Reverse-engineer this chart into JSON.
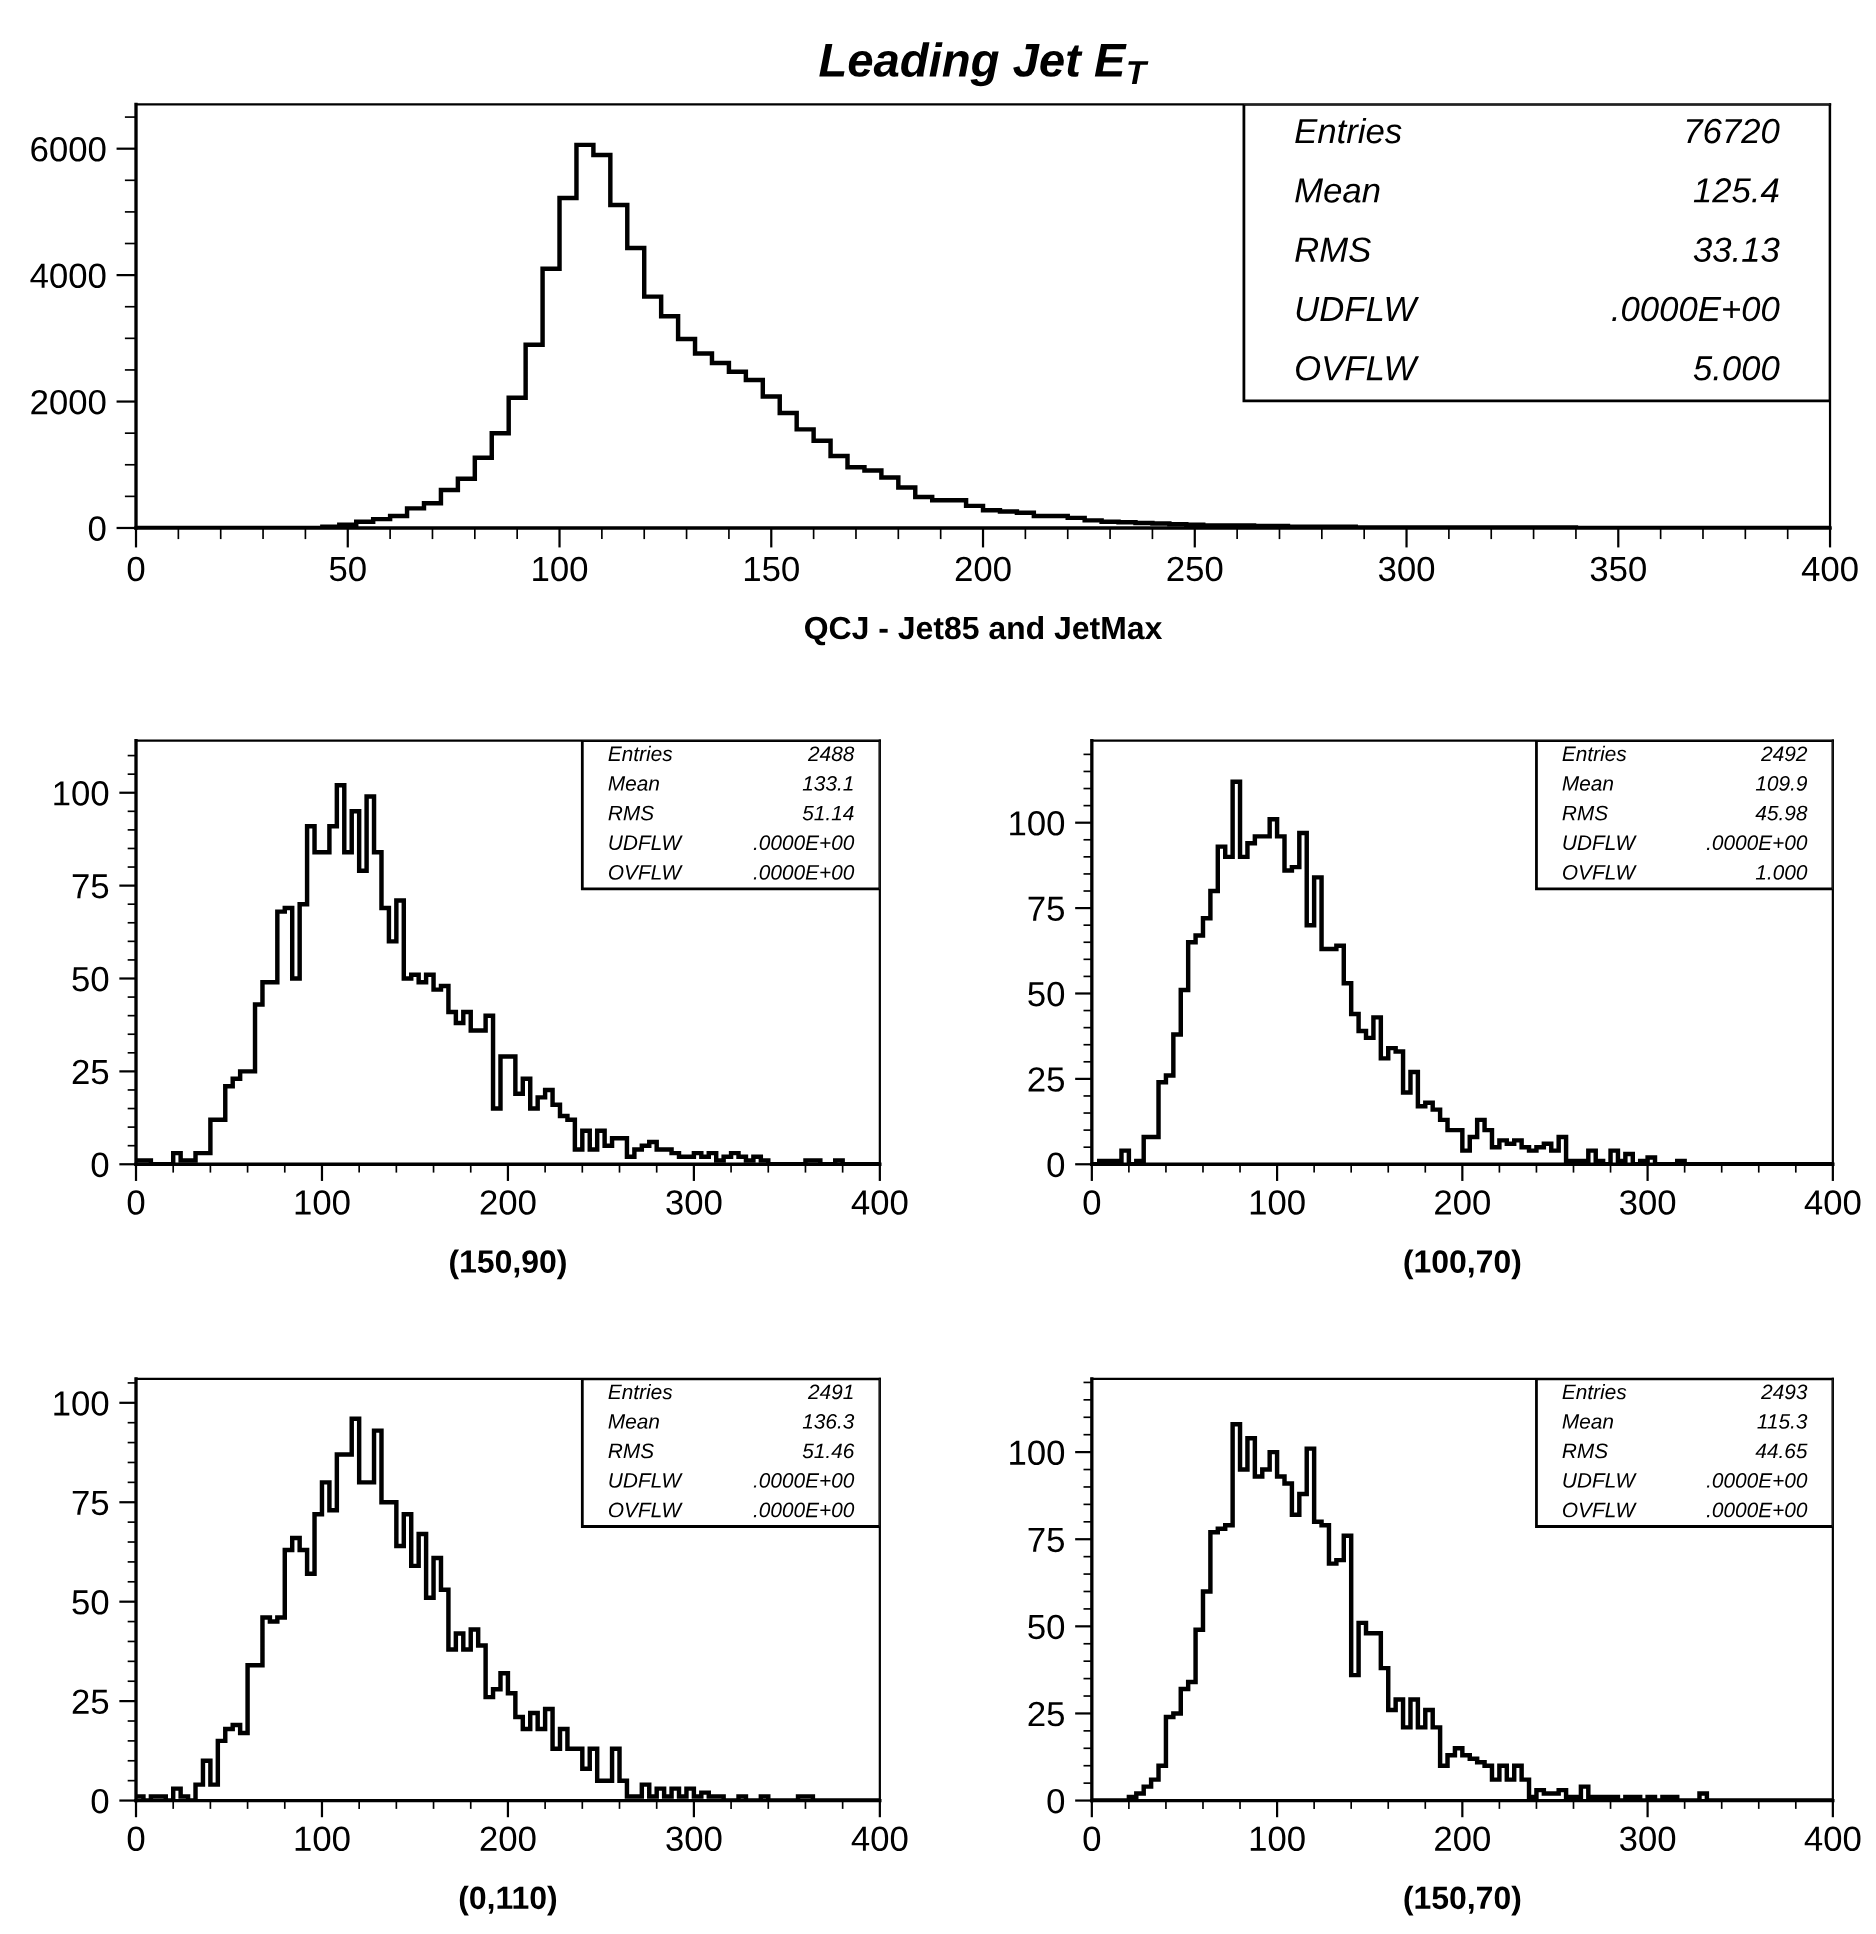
{
  "chart_data": [
    {
      "type": "histogram",
      "title": "Leading Jet E$_{T}$",
      "xlabel": "QCJ - Jet85 and JetMax",
      "color": "#000000",
      "bins": [
        0,
        4,
        8,
        12,
        16,
        20,
        24,
        28,
        32,
        36,
        40,
        44,
        48,
        52,
        56,
        60,
        64,
        68,
        72,
        76,
        80,
        84,
        88,
        92,
        96,
        100,
        104,
        108,
        112,
        116,
        120,
        124,
        128,
        132,
        136,
        140,
        144,
        148,
        152,
        156,
        160,
        164,
        168,
        172,
        176,
        180,
        184,
        188,
        192,
        196,
        200,
        204,
        208,
        212,
        216,
        220,
        224,
        228,
        232,
        236,
        240,
        244,
        248,
        252,
        256,
        260,
        264,
        268,
        272,
        276,
        280,
        284,
        288,
        292,
        296,
        300,
        304,
        308,
        312,
        316,
        320,
        324,
        328,
        332,
        336,
        340,
        344,
        348,
        352,
        356,
        360,
        364,
        368,
        372,
        376,
        380,
        384,
        388,
        392,
        396,
        400
      ],
      "values": [
        0,
        0,
        0,
        0,
        0,
        0,
        0,
        0,
        0,
        0,
        0,
        20,
        50,
        100,
        140,
        190,
        310,
        390,
        600,
        780,
        1110,
        1500,
        2060,
        2900,
        4100,
        5220,
        6060,
        5900,
        5110,
        4430,
        3660,
        3350,
        2990,
        2760,
        2610,
        2470,
        2340,
        2080,
        1820,
        1560,
        1380,
        1140,
        960,
        910,
        800,
        640,
        490,
        440,
        440,
        350,
        280,
        260,
        240,
        190,
        190,
        160,
        120,
        100,
        90,
        80,
        70,
        60,
        50,
        40,
        40,
        40,
        30,
        30,
        20,
        20,
        20,
        20,
        10,
        10,
        10,
        10,
        10,
        10,
        10,
        10,
        10,
        10,
        10,
        10,
        10,
        0,
        0,
        0,
        0,
        0,
        0,
        0,
        0,
        0,
        0,
        0,
        0,
        0,
        0,
        0
      ],
      "xlim": [
        0,
        400
      ],
      "ylim": [
        0,
        6700
      ],
      "xticks": [
        0,
        {
          "value": 10,
          "label": null
        },
        {
          "value": 20,
          "label": null
        },
        {
          "value": 30,
          "label": null
        },
        {
          "value": 40,
          "label": null
        },
        50,
        {
          "value": 60,
          "label": null
        },
        {
          "value": 70,
          "label": null
        },
        {
          "value": 80,
          "label": null
        },
        {
          "value": 90,
          "label": null
        },
        100,
        {
          "value": 110,
          "label": null
        },
        {
          "value": 120,
          "label": null
        },
        {
          "value": 130,
          "label": null
        },
        {
          "value": 140,
          "label": null
        },
        150,
        {
          "value": 160,
          "label": null
        },
        {
          "value": 170,
          "label": null
        },
        {
          "value": 180,
          "label": null
        },
        {
          "value": 190,
          "label": null
        },
        200,
        {
          "value": 210,
          "label": null
        },
        {
          "value": 220,
          "label": null
        },
        {
          "value": 230,
          "label": null
        },
        {
          "value": 240,
          "label": null
        },
        250,
        {
          "value": 260,
          "label": null
        },
        {
          "value": 270,
          "label": null
        },
        {
          "value": 280,
          "label": null
        },
        {
          "value": 290,
          "label": null
        },
        300,
        {
          "value": 310,
          "label": null
        },
        {
          "value": 320,
          "label": null
        },
        {
          "value": 330,
          "label": null
        },
        {
          "value": 340,
          "label": null
        },
        350,
        {
          "value": 360,
          "label": null
        },
        {
          "value": 370,
          "label": null
        },
        {
          "value": 380,
          "label": null
        },
        {
          "value": 390,
          "label": null
        },
        400
      ],
      "yticks": [
        0,
        {
          "value": 500,
          "label": null
        },
        {
          "value": 1000,
          "label": null
        },
        {
          "value": 1500,
          "label": null
        },
        2000,
        {
          "value": 2500,
          "label": null
        },
        {
          "value": 3000,
          "label": null
        },
        {
          "value": 3500,
          "label": null
        },
        4000,
        {
          "value": 4500,
          "label": null
        },
        {
          "value": 5000,
          "label": null
        },
        {
          "value": 5500,
          "label": null
        },
        6000,
        {
          "value": 6500,
          "label": null
        }
      ],
      "annotations": [
        "Entries",
        "76720",
        "Mean",
        "125.4",
        "RMS",
        "33.13",
        "UDFLW",
        ".0000E+00",
        "OVFLW",
        "5.000"
      ]
    },
    {
      "type": "histogram",
      "xlabel": "(150,90)",
      "color": "#000000",
      "bins": [
        0,
        4,
        8,
        12,
        16,
        20,
        24,
        28,
        32,
        36,
        40,
        44,
        48,
        52,
        56,
        60,
        64,
        68,
        72,
        76,
        80,
        84,
        88,
        92,
        96,
        100,
        104,
        108,
        112,
        116,
        120,
        124,
        128,
        132,
        136,
        140,
        144,
        148,
        152,
        156,
        160,
        164,
        168,
        172,
        176,
        180,
        184,
        188,
        192,
        196,
        200,
        204,
        208,
        212,
        216,
        220,
        224,
        228,
        232,
        236,
        240,
        244,
        248,
        252,
        256,
        260,
        264,
        268,
        272,
        276,
        280,
        284,
        288,
        292,
        296,
        300,
        304,
        308,
        312,
        316,
        320,
        324,
        328,
        332,
        336,
        340,
        344,
        348,
        352,
        356,
        360,
        364,
        368,
        372,
        376,
        380,
        384,
        388,
        392,
        396,
        400
      ],
      "values": [
        1,
        1,
        0,
        0,
        0,
        3,
        1,
        1,
        3,
        3,
        12,
        12,
        21,
        23,
        25,
        25,
        43,
        49,
        49,
        68,
        69,
        50,
        70,
        91,
        84,
        84,
        91,
        102,
        84,
        95,
        79,
        99,
        84,
        69,
        60,
        71,
        50,
        51,
        49,
        51,
        47,
        48,
        41,
        38,
        41,
        36,
        36,
        40,
        15,
        29,
        29,
        19,
        23,
        15,
        18,
        20,
        16,
        13,
        12,
        4,
        9,
        4,
        9,
        5,
        7,
        7,
        2,
        4,
        5,
        6,
        4,
        4,
        3,
        2,
        2,
        3,
        2,
        3,
        1,
        2,
        3,
        2,
        1,
        2,
        1,
        0,
        0,
        0,
        0,
        0,
        1,
        1,
        0,
        0,
        1,
        0,
        0,
        0,
        0,
        0
      ],
      "xlim": [
        0,
        400
      ],
      "ylim": [
        0,
        114
      ],
      "xticks": [
        0,
        {
          "value": 20,
          "label": null
        },
        {
          "value": 40,
          "label": null
        },
        {
          "value": 60,
          "label": null
        },
        {
          "value": 80,
          "label": null
        },
        100,
        {
          "value": 120,
          "label": null
        },
        {
          "value": 140,
          "label": null
        },
        {
          "value": 160,
          "label": null
        },
        {
          "value": 180,
          "label": null
        },
        200,
        {
          "value": 220,
          "label": null
        },
        {
          "value": 240,
          "label": null
        },
        {
          "value": 260,
          "label": null
        },
        {
          "value": 280,
          "label": null
        },
        300,
        {
          "value": 320,
          "label": null
        },
        {
          "value": 340,
          "label": null
        },
        {
          "value": 360,
          "label": null
        },
        {
          "value": 380,
          "label": null
        },
        400
      ],
      "yticks": [
        0,
        {
          "value": 5,
          "label": null
        },
        {
          "value": 10,
          "label": null
        },
        {
          "value": 15,
          "label": null
        },
        {
          "value": 20,
          "label": null
        },
        25,
        {
          "value": 30,
          "label": null
        },
        {
          "value": 35,
          "label": null
        },
        {
          "value": 40,
          "label": null
        },
        {
          "value": 45,
          "label": null
        },
        50,
        {
          "value": 55,
          "label": null
        },
        {
          "value": 60,
          "label": null
        },
        {
          "value": 65,
          "label": null
        },
        {
          "value": 70,
          "label": null
        },
        75,
        {
          "value": 80,
          "label": null
        },
        {
          "value": 85,
          "label": null
        },
        {
          "value": 90,
          "label": null
        },
        {
          "value": 95,
          "label": null
        },
        100,
        {
          "value": 105,
          "label": null
        },
        {
          "value": 110,
          "label": null
        }
      ],
      "annotations": [
        "Entries",
        "2488",
        "Mean",
        "133.1",
        "RMS",
        "51.14",
        "UDFLW",
        ".0000E+00",
        "OVFLW",
        ".0000E+00"
      ]
    },
    {
      "type": "histogram",
      "xlabel": "(100,70)",
      "color": "#000000",
      "bins": [
        0,
        4,
        8,
        12,
        16,
        20,
        24,
        28,
        32,
        36,
        40,
        44,
        48,
        52,
        56,
        60,
        64,
        68,
        72,
        76,
        80,
        84,
        88,
        92,
        96,
        100,
        104,
        108,
        112,
        116,
        120,
        124,
        128,
        132,
        136,
        140,
        144,
        148,
        152,
        156,
        160,
        164,
        168,
        172,
        176,
        180,
        184,
        188,
        192,
        196,
        200,
        204,
        208,
        212,
        216,
        220,
        224,
        228,
        232,
        236,
        240,
        244,
        248,
        252,
        256,
        260,
        264,
        268,
        272,
        276,
        280,
        284,
        288,
        292,
        296,
        300,
        304,
        308,
        312,
        316,
        320,
        324,
        328,
        332,
        336,
        340,
        344,
        348,
        352,
        356,
        360,
        364,
        368,
        372,
        376,
        380,
        384,
        388,
        392,
        396,
        400
      ],
      "values": [
        0,
        1,
        1,
        1,
        4,
        0,
        1,
        8,
        8,
        24,
        26,
        38,
        51,
        65,
        67,
        72,
        80,
        93,
        90,
        112,
        90,
        94,
        96,
        96,
        101,
        96,
        86,
        87,
        97,
        70,
        84,
        63,
        63,
        64,
        53,
        44,
        39,
        37,
        43,
        31,
        34,
        33,
        21,
        27,
        17,
        18,
        16,
        13,
        10,
        10,
        4,
        8,
        13,
        10,
        5,
        7,
        6,
        7,
        5,
        4,
        5,
        6,
        4,
        8,
        1,
        1,
        1,
        4,
        1,
        0,
        4,
        1,
        3,
        0,
        1,
        2,
        0,
        0,
        0,
        1,
        0,
        0,
        0,
        0,
        0,
        0,
        0,
        0,
        0,
        0,
        0,
        0,
        0,
        0,
        0,
        0,
        0,
        0,
        0,
        0
      ],
      "xlim": [
        0,
        400
      ],
      "ylim": [
        0,
        124
      ],
      "xticks": [
        0,
        {
          "value": 20,
          "label": null
        },
        {
          "value": 40,
          "label": null
        },
        {
          "value": 60,
          "label": null
        },
        {
          "value": 80,
          "label": null
        },
        100,
        {
          "value": 120,
          "label": null
        },
        {
          "value": 140,
          "label": null
        },
        {
          "value": 160,
          "label": null
        },
        {
          "value": 180,
          "label": null
        },
        200,
        {
          "value": 220,
          "label": null
        },
        {
          "value": 240,
          "label": null
        },
        {
          "value": 260,
          "label": null
        },
        {
          "value": 280,
          "label": null
        },
        300,
        {
          "value": 320,
          "label": null
        },
        {
          "value": 340,
          "label": null
        },
        {
          "value": 360,
          "label": null
        },
        {
          "value": 380,
          "label": null
        },
        400
      ],
      "yticks": [
        0,
        {
          "value": 5,
          "label": null
        },
        {
          "value": 10,
          "label": null
        },
        {
          "value": 15,
          "label": null
        },
        {
          "value": 20,
          "label": null
        },
        25,
        {
          "value": 30,
          "label": null
        },
        {
          "value": 35,
          "label": null
        },
        {
          "value": 40,
          "label": null
        },
        {
          "value": 45,
          "label": null
        },
        50,
        {
          "value": 55,
          "label": null
        },
        {
          "value": 60,
          "label": null
        },
        {
          "value": 65,
          "label": null
        },
        {
          "value": 70,
          "label": null
        },
        75,
        {
          "value": 80,
          "label": null
        },
        {
          "value": 85,
          "label": null
        },
        {
          "value": 90,
          "label": null
        },
        {
          "value": 95,
          "label": null
        },
        100,
        {
          "value": 105,
          "label": null
        },
        {
          "value": 110,
          "label": null
        },
        {
          "value": 115,
          "label": null
        },
        {
          "value": 120,
          "label": null
        }
      ],
      "annotations": [
        "Entries",
        "2492",
        "Mean",
        "109.9",
        "RMS",
        "45.98",
        "UDFLW",
        ".0000E+00",
        "OVFLW",
        "1.000"
      ]
    },
    {
      "type": "histogram",
      "xlabel": "(0,110)",
      "color": "#000000",
      "bins": [
        0,
        4,
        8,
        12,
        16,
        20,
        24,
        28,
        32,
        36,
        40,
        44,
        48,
        52,
        56,
        60,
        64,
        68,
        72,
        76,
        80,
        84,
        88,
        92,
        96,
        100,
        104,
        108,
        112,
        116,
        120,
        124,
        128,
        132,
        136,
        140,
        144,
        148,
        152,
        156,
        160,
        164,
        168,
        172,
        176,
        180,
        184,
        188,
        192,
        196,
        200,
        204,
        208,
        212,
        216,
        220,
        224,
        228,
        232,
        236,
        240,
        244,
        248,
        252,
        256,
        260,
        264,
        268,
        272,
        276,
        280,
        284,
        288,
        292,
        296,
        300,
        304,
        308,
        312,
        316,
        320,
        324,
        328,
        332,
        336,
        340,
        344,
        348,
        352,
        356,
        360,
        364,
        368,
        372,
        376,
        380,
        384,
        388,
        392,
        396,
        400
      ],
      "values": [
        1,
        0,
        1,
        1,
        0,
        3,
        1,
        0,
        4,
        10,
        4,
        15,
        18,
        19,
        17,
        34,
        34,
        46,
        45,
        46,
        63,
        66,
        63,
        57,
        72,
        80,
        73,
        87,
        87,
        96,
        80,
        80,
        93,
        75,
        75,
        64,
        72,
        59,
        67,
        51,
        61,
        53,
        38,
        42,
        38,
        43,
        39,
        26,
        28,
        32,
        27,
        21,
        18,
        22,
        18,
        23,
        13,
        18,
        13,
        13,
        8,
        13,
        5,
        5,
        13,
        5,
        1,
        1,
        4,
        1,
        3,
        1,
        3,
        1,
        3,
        1,
        2,
        1,
        1,
        0,
        0,
        1,
        0,
        0,
        1,
        0,
        0,
        0,
        0,
        1,
        1,
        0,
        0,
        0,
        0,
        0,
        0,
        0,
        0,
        0
      ],
      "xlim": [
        0,
        400
      ],
      "ylim": [
        0,
        106
      ],
      "xticks": [
        0,
        {
          "value": 20,
          "label": null
        },
        {
          "value": 40,
          "label": null
        },
        {
          "value": 60,
          "label": null
        },
        {
          "value": 80,
          "label": null
        },
        100,
        {
          "value": 120,
          "label": null
        },
        {
          "value": 140,
          "label": null
        },
        {
          "value": 160,
          "label": null
        },
        {
          "value": 180,
          "label": null
        },
        200,
        {
          "value": 220,
          "label": null
        },
        {
          "value": 240,
          "label": null
        },
        {
          "value": 260,
          "label": null
        },
        {
          "value": 280,
          "label": null
        },
        300,
        {
          "value": 320,
          "label": null
        },
        {
          "value": 340,
          "label": null
        },
        {
          "value": 360,
          "label": null
        },
        {
          "value": 380,
          "label": null
        },
        400
      ],
      "yticks": [
        0,
        {
          "value": 5,
          "label": null
        },
        {
          "value": 10,
          "label": null
        },
        {
          "value": 15,
          "label": null
        },
        {
          "value": 20,
          "label": null
        },
        25,
        {
          "value": 30,
          "label": null
        },
        {
          "value": 35,
          "label": null
        },
        {
          "value": 40,
          "label": null
        },
        {
          "value": 45,
          "label": null
        },
        50,
        {
          "value": 55,
          "label": null
        },
        {
          "value": 60,
          "label": null
        },
        {
          "value": 65,
          "label": null
        },
        {
          "value": 70,
          "label": null
        },
        75,
        {
          "value": 80,
          "label": null
        },
        {
          "value": 85,
          "label": null
        },
        {
          "value": 90,
          "label": null
        },
        {
          "value": 95,
          "label": null
        },
        100,
        {
          "value": 105,
          "label": null
        }
      ],
      "annotations": [
        "Entries",
        "2491",
        "Mean",
        "136.3",
        "RMS",
        "51.46",
        "UDFLW",
        ".0000E+00",
        "OVFLW",
        ".0000E+00"
      ]
    },
    {
      "type": "histogram",
      "xlabel": "(150,70)",
      "color": "#000000",
      "bins": [
        0,
        4,
        8,
        12,
        16,
        20,
        24,
        28,
        32,
        36,
        40,
        44,
        48,
        52,
        56,
        60,
        64,
        68,
        72,
        76,
        80,
        84,
        88,
        92,
        96,
        100,
        104,
        108,
        112,
        116,
        120,
        124,
        128,
        132,
        136,
        140,
        144,
        148,
        152,
        156,
        160,
        164,
        168,
        172,
        176,
        180,
        184,
        188,
        192,
        196,
        200,
        204,
        208,
        212,
        216,
        220,
        224,
        228,
        232,
        236,
        240,
        244,
        248,
        252,
        256,
        260,
        264,
        268,
        272,
        276,
        280,
        284,
        288,
        292,
        296,
        300,
        304,
        308,
        312,
        316,
        320,
        324,
        328,
        332,
        336,
        340,
        344,
        348,
        352,
        356,
        360,
        364,
        368,
        372,
        376,
        380,
        384,
        388,
        392,
        396,
        400
      ],
      "values": [
        0,
        0,
        0,
        0,
        0,
        1,
        2,
        4,
        6,
        10,
        24,
        25,
        32,
        34,
        49,
        60,
        77,
        78,
        79,
        108,
        95,
        104,
        93,
        95,
        100,
        93,
        91,
        82,
        88,
        101,
        80,
        79,
        68,
        69,
        76,
        36,
        51,
        48,
        48,
        38,
        26,
        29,
        21,
        29,
        21,
        26,
        21,
        10,
        13,
        15,
        13,
        12,
        11,
        10,
        6,
        10,
        6,
        10,
        6,
        1,
        3,
        2,
        2,
        3,
        1,
        1,
        4,
        1,
        1,
        1,
        1,
        0,
        1,
        1,
        0,
        1,
        0,
        1,
        1,
        0,
        0,
        0,
        2,
        0,
        0,
        0,
        0,
        0,
        0,
        0,
        0,
        0,
        0,
        0,
        0,
        0,
        0,
        0,
        0,
        0
      ],
      "xlim": [
        0,
        400
      ],
      "ylim": [
        0,
        121
      ],
      "xticks": [
        0,
        {
          "value": 20,
          "label": null
        },
        {
          "value": 40,
          "label": null
        },
        {
          "value": 60,
          "label": null
        },
        {
          "value": 80,
          "label": null
        },
        100,
        {
          "value": 120,
          "label": null
        },
        {
          "value": 140,
          "label": null
        },
        {
          "value": 160,
          "label": null
        },
        {
          "value": 180,
          "label": null
        },
        200,
        {
          "value": 220,
          "label": null
        },
        {
          "value": 240,
          "label": null
        },
        {
          "value": 260,
          "label": null
        },
        {
          "value": 280,
          "label": null
        },
        300,
        {
          "value": 320,
          "label": null
        },
        {
          "value": 340,
          "label": null
        },
        {
          "value": 360,
          "label": null
        },
        {
          "value": 380,
          "label": null
        },
        400
      ],
      "yticks": [
        0,
        {
          "value": 5,
          "label": null
        },
        {
          "value": 10,
          "label": null
        },
        {
          "value": 15,
          "label": null
        },
        {
          "value": 20,
          "label": null
        },
        25,
        {
          "value": 30,
          "label": null
        },
        {
          "value": 35,
          "label": null
        },
        {
          "value": 40,
          "label": null
        },
        {
          "value": 45,
          "label": null
        },
        50,
        {
          "value": 55,
          "label": null
        },
        {
          "value": 60,
          "label": null
        },
        {
          "value": 65,
          "label": null
        },
        {
          "value": 70,
          "label": null
        },
        75,
        {
          "value": 80,
          "label": null
        },
        {
          "value": 85,
          "label": null
        },
        {
          "value": 90,
          "label": null
        },
        {
          "value": 95,
          "label": null
        },
        100,
        {
          "value": 105,
          "label": null
        },
        {
          "value": 110,
          "label": null
        },
        {
          "value": 115,
          "label": null
        },
        {
          "value": 120,
          "label": null
        }
      ],
      "annotations": [
        "Entries",
        "2493",
        "Mean",
        "115.3",
        "RMS",
        "44.65",
        "UDFLW",
        ".0000E+00",
        "OVFLW",
        ".0000E+00"
      ]
    }
  ]
}
